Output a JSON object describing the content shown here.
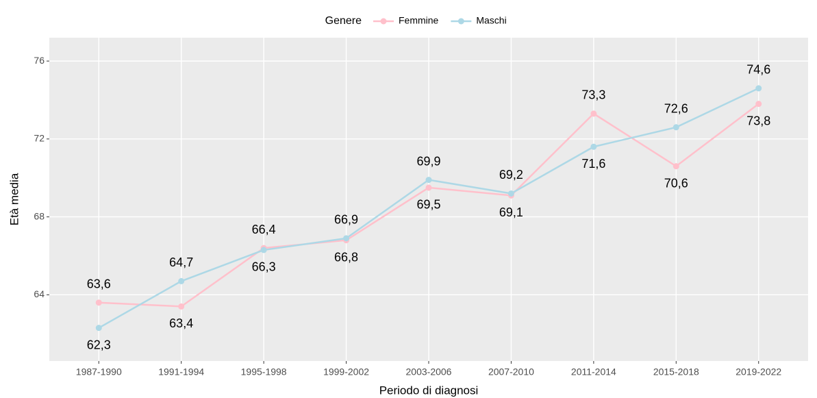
{
  "chart_data": {
    "type": "line",
    "legend_title": "Genere",
    "x_label": "Periodo di diagnosi",
    "y_label": "Età media",
    "categories": [
      "1987-1990",
      "1991-1994",
      "1995-1998",
      "1999-2002",
      "2003-2006",
      "2007-2010",
      "2011-2014",
      "2015-2018",
      "2019-2022"
    ],
    "series": [
      {
        "name": "Femmine",
        "color": "#ffc0cb",
        "values": [
          63.6,
          63.4,
          66.4,
          66.8,
          69.5,
          69.1,
          73.3,
          70.6,
          73.8
        ],
        "value_labels": [
          "63,6",
          "63,4",
          "66,4",
          "66,8",
          "69,5",
          "69,1",
          "73,3",
          "70,6",
          "73,8"
        ]
      },
      {
        "name": "Maschi",
        "color": "#add8e6",
        "values": [
          62.3,
          64.7,
          66.3,
          66.9,
          69.9,
          69.2,
          71.6,
          72.6,
          74.6
        ],
        "value_labels": [
          "62,3",
          "64,7",
          "66,3",
          "66,9",
          "69,9",
          "69,2",
          "71,6",
          "72,6",
          "74,6"
        ]
      }
    ],
    "ylim": [
      60.6,
      77.2
    ],
    "yticks": [
      64,
      68,
      72,
      76
    ],
    "grid": true,
    "legend_position": "top"
  }
}
